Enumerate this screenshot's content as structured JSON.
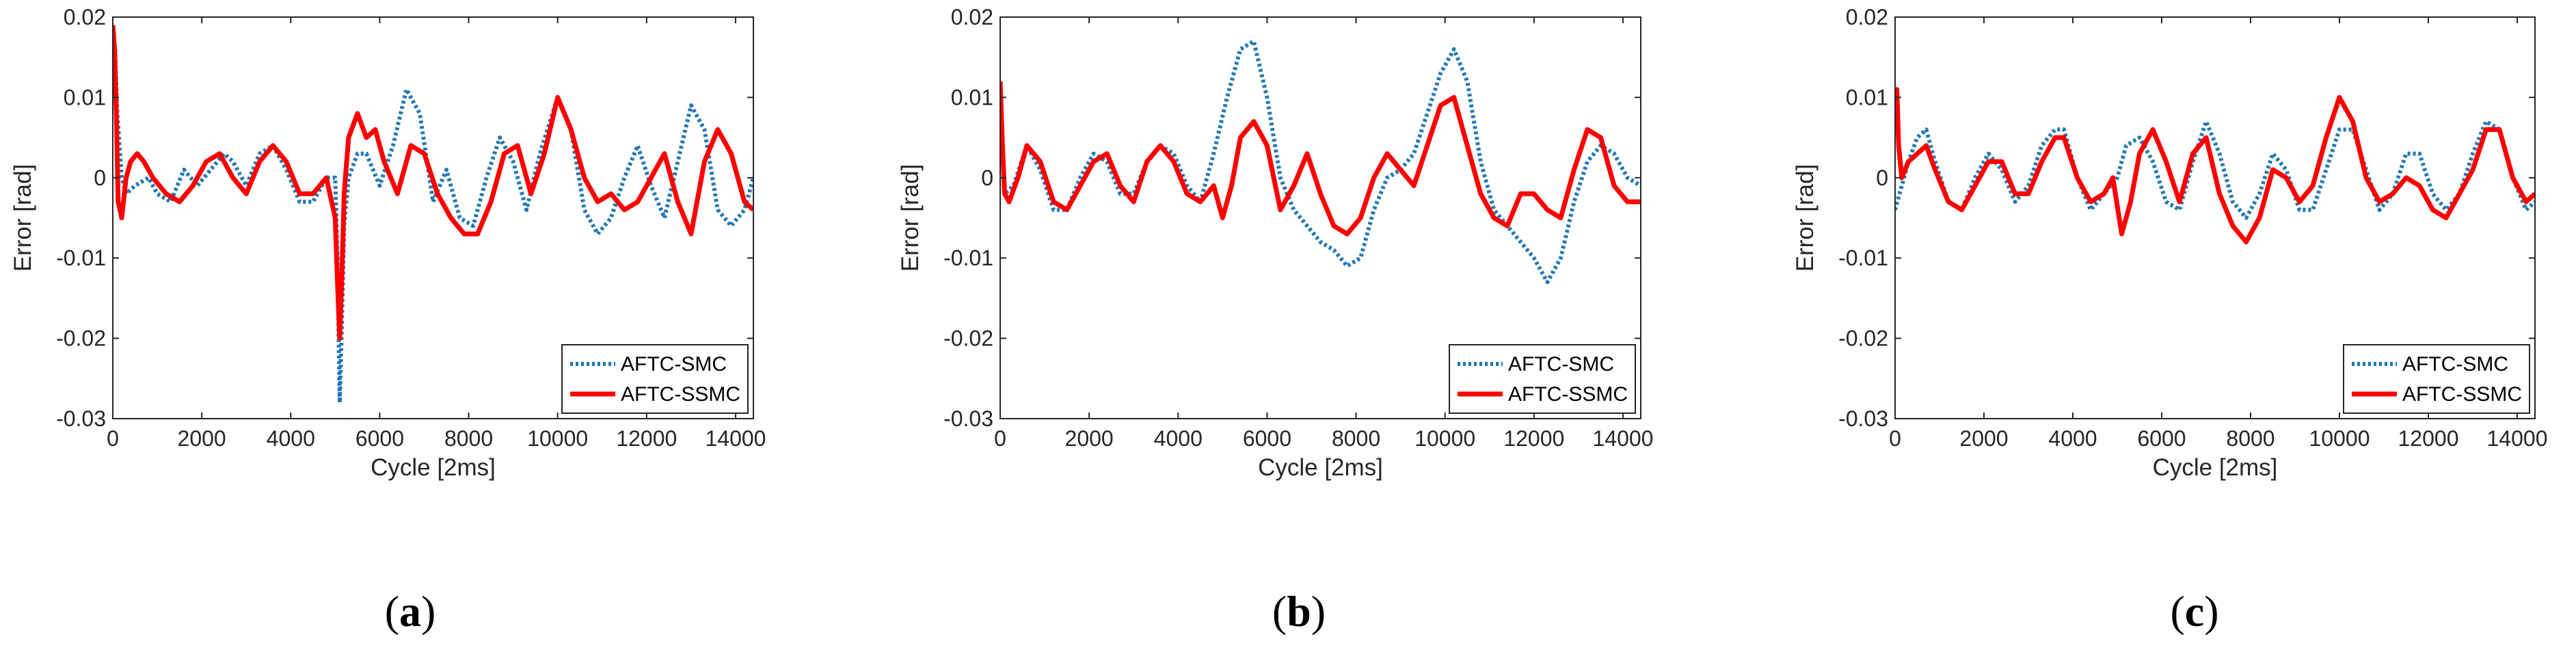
{
  "colors": {
    "smc": "#1f77b4",
    "ssmc": "#ff0000",
    "axis": "#262626"
  },
  "chart_data": [
    {
      "type": "line",
      "panel": "a",
      "caption": {
        "open": "(",
        "letter": "a",
        "close": ")"
      },
      "xlabel": "Cycle [2ms]",
      "ylabel": "Error [rad]",
      "xlim": [
        0,
        14400
      ],
      "ylim": [
        -0.03,
        0.02
      ],
      "xticks": [
        0,
        2000,
        4000,
        6000,
        8000,
        10000,
        12000,
        14000
      ],
      "xtick_labels": [
        "0",
        "2000",
        "4000",
        "6000",
        "8000",
        "10000",
        "12000",
        "14000"
      ],
      "yticks": [
        0.02,
        0.01,
        0,
        -0.01,
        -0.02,
        -0.03
      ],
      "ytick_labels": [
        "0.02",
        "0.01",
        "0",
        "-0.01",
        "-0.02",
        "-0.03"
      ],
      "legend_position": "bottom-right",
      "series": [
        {
          "name": "AFTC-SMC",
          "style": "dotted",
          "x": [
            0,
            50,
            100,
            200,
            300,
            500,
            800,
            1000,
            1300,
            1600,
            1900,
            2200,
            2500,
            2700,
            3000,
            3300,
            3600,
            3900,
            4200,
            4500,
            4800,
            5000,
            5050,
            5100,
            5150,
            5200,
            5300,
            5500,
            5700,
            6000,
            6300,
            6600,
            6900,
            7200,
            7500,
            7800,
            8100,
            8400,
            8700,
            9000,
            9300,
            9600,
            10000,
            10300,
            10600,
            10900,
            11200,
            11500,
            11800,
            12100,
            12400,
            12700,
            13000,
            13300,
            13600,
            13900,
            14200,
            14400
          ],
          "y": [
            0.018,
            0.016,
            0.008,
            0.0,
            -0.002,
            -0.001,
            0.0,
            -0.002,
            -0.003,
            0.001,
            -0.001,
            0.001,
            0.003,
            0.002,
            -0.001,
            0.003,
            0.004,
            0.001,
            -0.003,
            -0.003,
            0.0,
            0.0,
            -0.01,
            -0.028,
            -0.018,
            -0.006,
            0.0,
            0.003,
            0.003,
            -0.001,
            0.004,
            0.011,
            0.008,
            -0.003,
            0.001,
            -0.005,
            -0.006,
            0.0,
            0.005,
            0.002,
            -0.004,
            0.003,
            0.01,
            0.006,
            -0.004,
            -0.007,
            -0.005,
            0.0,
            0.004,
            -0.001,
            -0.005,
            0.002,
            0.009,
            0.006,
            -0.004,
            -0.006,
            -0.004,
            0.0
          ]
        },
        {
          "name": "AFTC-SSMC",
          "style": "solid",
          "x": [
            0,
            40,
            80,
            120,
            200,
            300,
            400,
            550,
            700,
            900,
            1200,
            1500,
            1800,
            2100,
            2400,
            2700,
            3000,
            3300,
            3600,
            3900,
            4200,
            4500,
            4800,
            5000,
            5050,
            5100,
            5150,
            5200,
            5300,
            5500,
            5700,
            5900,
            6100,
            6400,
            6700,
            7000,
            7300,
            7600,
            7900,
            8200,
            8500,
            8800,
            9100,
            9400,
            9700,
            10000,
            10300,
            10600,
            10900,
            11200,
            11500,
            11800,
            12100,
            12400,
            12700,
            13000,
            13300,
            13600,
            13900,
            14200,
            14400
          ],
          "y": [
            0.019,
            0.016,
            0.008,
            -0.003,
            -0.005,
            0.0,
            0.002,
            0.003,
            0.002,
            0.0,
            -0.002,
            -0.003,
            -0.001,
            0.002,
            0.003,
            0.0,
            -0.002,
            0.002,
            0.004,
            0.002,
            -0.002,
            -0.002,
            0.0,
            -0.005,
            -0.013,
            -0.02,
            -0.012,
            -0.002,
            0.005,
            0.008,
            0.005,
            0.006,
            0.002,
            -0.002,
            0.004,
            0.003,
            -0.002,
            -0.005,
            -0.007,
            -0.007,
            -0.003,
            0.003,
            0.004,
            -0.002,
            0.003,
            0.01,
            0.006,
            0.0,
            -0.003,
            -0.002,
            -0.004,
            -0.003,
            0.0,
            0.003,
            -0.003,
            -0.007,
            0.002,
            0.006,
            0.003,
            -0.003,
            -0.004
          ]
        }
      ]
    },
    {
      "type": "line",
      "panel": "b",
      "caption": {
        "open": "(",
        "letter": "b",
        "close": ")"
      },
      "xlabel": "Cycle [2ms]",
      "ylabel": "Error [rad]",
      "xlim": [
        0,
        14400
      ],
      "ylim": [
        -0.03,
        0.02
      ],
      "xticks": [
        0,
        2000,
        4000,
        6000,
        8000,
        10000,
        12000,
        14000
      ],
      "xtick_labels": [
        "0",
        "2000",
        "4000",
        "6000",
        "8000",
        "10000",
        "12000",
        "14000"
      ],
      "yticks": [
        0.02,
        0.01,
        0,
        -0.01,
        -0.02,
        -0.03
      ],
      "ytick_labels": [
        "0.02",
        "0.01",
        "0",
        "-0.01",
        "-0.02",
        "-0.03"
      ],
      "legend_position": "bottom-right",
      "series": [
        {
          "name": "AFTC-SMC",
          "style": "dotted",
          "x": [
            0,
            100,
            300,
            600,
            900,
            1200,
            1500,
            1800,
            2100,
            2400,
            2700,
            3000,
            3300,
            3600,
            3900,
            4200,
            4500,
            4800,
            5100,
            5400,
            5700,
            6000,
            6300,
            6600,
            6900,
            7200,
            7500,
            7800,
            8100,
            8400,
            8700,
            9000,
            9300,
            9600,
            9900,
            10200,
            10500,
            10800,
            11100,
            11400,
            11700,
            12000,
            12300,
            12600,
            12900,
            13200,
            13500,
            13800,
            14100,
            14400
          ],
          "y": [
            0.008,
            -0.002,
            -0.001,
            0.004,
            0.001,
            -0.004,
            -0.004,
            0.0,
            0.003,
            0.002,
            -0.002,
            -0.002,
            0.002,
            0.004,
            0.003,
            -0.001,
            -0.003,
            0.003,
            0.01,
            0.016,
            0.017,
            0.01,
            0.0,
            -0.004,
            -0.006,
            -0.008,
            -0.009,
            -0.011,
            -0.01,
            -0.004,
            0.0,
            0.001,
            0.003,
            0.008,
            0.013,
            0.016,
            0.012,
            0.002,
            -0.004,
            -0.006,
            -0.008,
            -0.01,
            -0.013,
            -0.01,
            -0.003,
            0.002,
            0.004,
            0.003,
            0.0,
            -0.001
          ]
        },
        {
          "name": "AFTC-SSMC",
          "style": "solid",
          "x": [
            0,
            50,
            100,
            200,
            400,
            600,
            900,
            1200,
            1500,
            1800,
            2100,
            2400,
            2700,
            3000,
            3300,
            3600,
            3900,
            4200,
            4500,
            4800,
            5000,
            5200,
            5400,
            5700,
            6000,
            6300,
            6600,
            6900,
            7200,
            7500,
            7800,
            8100,
            8400,
            8700,
            9000,
            9300,
            9600,
            9900,
            10200,
            10500,
            10800,
            11100,
            11400,
            11700,
            12000,
            12300,
            12600,
            12900,
            13200,
            13500,
            13800,
            14100,
            14400
          ],
          "y": [
            0.012,
            0.004,
            -0.002,
            -0.003,
            0.0,
            0.004,
            0.002,
            -0.003,
            -0.004,
            -0.001,
            0.002,
            0.003,
            -0.001,
            -0.003,
            0.002,
            0.004,
            0.002,
            -0.002,
            -0.003,
            -0.001,
            -0.005,
            -0.001,
            0.005,
            0.007,
            0.004,
            -0.004,
            -0.001,
            0.003,
            -0.002,
            -0.006,
            -0.007,
            -0.005,
            0.0,
            0.003,
            0.001,
            -0.001,
            0.004,
            0.009,
            0.01,
            0.004,
            -0.002,
            -0.005,
            -0.006,
            -0.002,
            -0.002,
            -0.004,
            -0.005,
            0.001,
            0.006,
            0.005,
            -0.001,
            -0.003,
            -0.003
          ]
        }
      ]
    },
    {
      "type": "line",
      "panel": "c",
      "caption": {
        "open": "(",
        "letter": "c",
        "close": ")"
      },
      "xlabel": "Cycle [2ms]",
      "ylabel": "Error [rad]",
      "xlim": [
        0,
        14400
      ],
      "ylim": [
        -0.03,
        0.02
      ],
      "xticks": [
        0,
        2000,
        4000,
        6000,
        8000,
        10000,
        12000,
        14000
      ],
      "xtick_labels": [
        "0",
        "2000",
        "4000",
        "6000",
        "8000",
        "10000",
        "12000",
        "14000"
      ],
      "yticks": [
        0.02,
        0.01,
        0,
        -0.01,
        -0.02,
        -0.03
      ],
      "ytick_labels": [
        "0.02",
        "0.01",
        "0",
        "-0.01",
        "-0.02",
        "-0.03"
      ],
      "legend_position": "bottom-right",
      "series": [
        {
          "name": "AFTC-SMC",
          "style": "dotted",
          "x": [
            0,
            100,
            300,
            500,
            700,
            900,
            1200,
            1500,
            1800,
            2100,
            2400,
            2700,
            3000,
            3300,
            3600,
            3800,
            4100,
            4400,
            4700,
            5000,
            5200,
            5500,
            5800,
            6100,
            6400,
            6700,
            7000,
            7300,
            7600,
            7900,
            8200,
            8500,
            8800,
            9100,
            9400,
            9700,
            10000,
            10300,
            10600,
            10900,
            11200,
            11500,
            11800,
            12100,
            12400,
            12700,
            13000,
            13300,
            13600,
            13900,
            14200,
            14400
          ],
          "y": [
            -0.004,
            -0.002,
            0.002,
            0.005,
            0.006,
            0.002,
            -0.003,
            -0.004,
            0.0,
            0.003,
            0.001,
            -0.003,
            -0.001,
            0.004,
            0.006,
            0.006,
            0.0,
            -0.004,
            -0.002,
            0.0,
            0.004,
            0.005,
            0.002,
            -0.003,
            -0.004,
            0.002,
            0.007,
            0.003,
            -0.003,
            -0.005,
            -0.002,
            0.003,
            0.001,
            -0.004,
            -0.004,
            0.001,
            0.006,
            0.006,
            0.001,
            -0.004,
            -0.002,
            0.003,
            0.003,
            -0.002,
            -0.004,
            -0.002,
            0.003,
            0.007,
            0.006,
            0.0,
            -0.004,
            -0.003
          ]
        },
        {
          "name": "AFTC-SSMC",
          "style": "solid",
          "x": [
            0,
            40,
            80,
            150,
            300,
            500,
            700,
            900,
            1200,
            1500,
            1800,
            2100,
            2400,
            2700,
            3000,
            3300,
            3600,
            3800,
            4100,
            4400,
            4700,
            4900,
            5100,
            5300,
            5500,
            5800,
            6100,
            6400,
            6700,
            7000,
            7300,
            7600,
            7900,
            8200,
            8500,
            8800,
            9100,
            9400,
            9700,
            10000,
            10300,
            10600,
            10900,
            11200,
            11500,
            11800,
            12100,
            12400,
            12700,
            13000,
            13300,
            13600,
            13900,
            14200,
            14400
          ],
          "y": [
            0.006,
            0.011,
            0.004,
            0.0,
            0.002,
            0.003,
            0.004,
            0.001,
            -0.003,
            -0.004,
            -0.001,
            0.002,
            0.002,
            -0.002,
            -0.002,
            0.002,
            0.005,
            0.005,
            0.0,
            -0.003,
            -0.002,
            0.0,
            -0.007,
            -0.003,
            0.003,
            0.006,
            0.002,
            -0.003,
            0.003,
            0.005,
            -0.002,
            -0.006,
            -0.008,
            -0.005,
            0.001,
            0.0,
            -0.003,
            -0.001,
            0.005,
            0.01,
            0.007,
            0.0,
            -0.003,
            -0.002,
            0.0,
            -0.001,
            -0.004,
            -0.005,
            -0.002,
            0.001,
            0.006,
            0.006,
            0.0,
            -0.003,
            -0.002
          ]
        }
      ]
    }
  ]
}
